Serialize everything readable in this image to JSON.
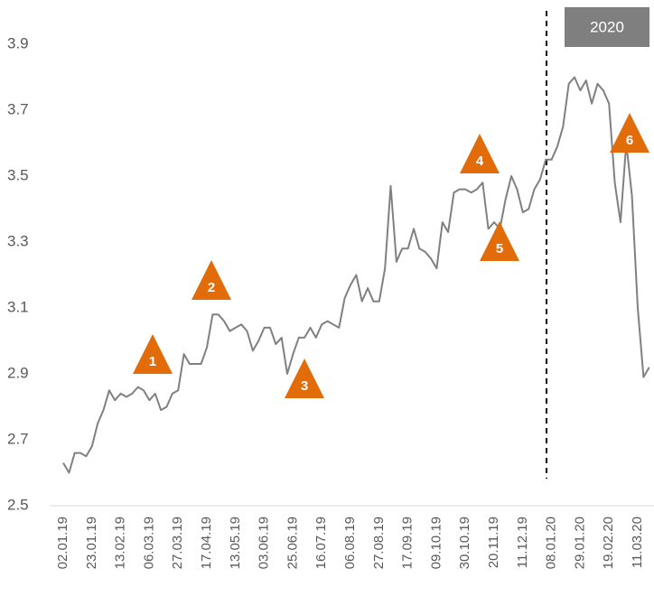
{
  "chart_data": {
    "type": "line",
    "categories": [
      "02.01.19",
      null,
      null,
      null,
      null,
      "23.01.19",
      null,
      null,
      null,
      null,
      "13.02.19",
      null,
      null,
      null,
      null,
      "06.03.19",
      null,
      null,
      null,
      null,
      "27.03.19",
      null,
      null,
      null,
      null,
      "17.04.19",
      null,
      null,
      null,
      null,
      "13.05.19",
      null,
      null,
      null,
      null,
      "03.06.19",
      null,
      null,
      null,
      null,
      "25.06.19",
      null,
      null,
      null,
      null,
      "16.07.19",
      null,
      null,
      null,
      null,
      "06.08.19",
      null,
      null,
      null,
      null,
      "27.08.19",
      null,
      null,
      null,
      null,
      "17.09.19",
      null,
      null,
      null,
      null,
      "09.10.19",
      null,
      null,
      null,
      null,
      "30.10.19",
      null,
      null,
      null,
      null,
      "20.11.19",
      null,
      null,
      null,
      null,
      "11.12.19",
      null,
      null,
      null,
      null,
      "08.01.20",
      null,
      null,
      null,
      null,
      "29.01.20",
      null,
      null,
      null,
      null,
      "19.02.20",
      null,
      null,
      null,
      null,
      "11.03.20",
      null,
      null
    ],
    "values": [
      2.63,
      2.6,
      2.66,
      2.66,
      2.65,
      2.68,
      2.75,
      2.79,
      2.85,
      2.82,
      2.84,
      2.83,
      2.84,
      2.86,
      2.85,
      2.82,
      2.84,
      2.79,
      2.8,
      2.84,
      2.85,
      2.96,
      2.93,
      2.93,
      2.93,
      2.98,
      3.08,
      3.08,
      3.06,
      3.03,
      3.04,
      3.05,
      3.03,
      2.97,
      3.0,
      3.04,
      3.04,
      2.99,
      3.01,
      2.9,
      2.96,
      3.01,
      3.01,
      3.04,
      3.01,
      3.05,
      3.06,
      3.05,
      3.04,
      3.13,
      3.17,
      3.2,
      3.12,
      3.16,
      3.12,
      3.12,
      3.22,
      3.47,
      3.24,
      3.28,
      3.28,
      3.34,
      3.28,
      3.27,
      3.25,
      3.22,
      3.36,
      3.33,
      3.45,
      3.46,
      3.46,
      3.45,
      3.46,
      3.48,
      3.34,
      3.36,
      3.34,
      3.43,
      3.5,
      3.46,
      3.39,
      3.4,
      3.46,
      3.49,
      3.55,
      3.55,
      3.59,
      3.65,
      3.78,
      3.8,
      3.76,
      3.79,
      3.72,
      3.78,
      3.76,
      3.72,
      3.48,
      3.36,
      3.6,
      3.44,
      3.1,
      2.89,
      2.92
    ],
    "color": "#808080",
    "ylim": [
      2.5,
      3.9
    ],
    "yticks": [
      2.5,
      2.7,
      2.9,
      3.1,
      3.3,
      3.5,
      3.7,
      3.9
    ],
    "grid": false,
    "annotations": [
      "1",
      "2",
      "3",
      "4",
      "5",
      "6"
    ],
    "period_label": "2020"
  }
}
